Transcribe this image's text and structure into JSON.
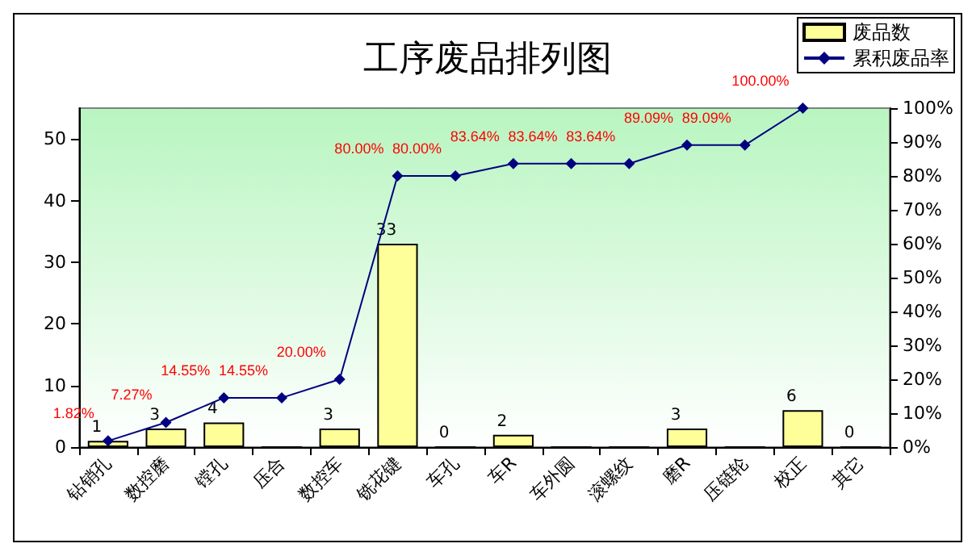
{
  "chart_data": {
    "type": "bar",
    "title": "工序废品排列图",
    "categories": [
      "钻销孔",
      "数控磨",
      "镗孔",
      "压合",
      "数控车",
      "铣花键",
      "车孔",
      "车R",
      "车外圆",
      "滚螺纹",
      "磨R",
      "压链轮",
      "校正",
      "其它"
    ],
    "series": [
      {
        "name": "废品数",
        "type": "bar",
        "color": "#ffff99",
        "values": [
          1,
          3,
          4,
          0,
          3,
          33,
          0,
          2,
          0,
          0,
          3,
          0,
          6,
          0
        ],
        "value_labels": [
          "1",
          "3",
          "4",
          null,
          "3",
          "33",
          "0",
          "2",
          null,
          null,
          "3",
          null,
          "6",
          "0"
        ]
      },
      {
        "name": "累积废品率",
        "type": "line",
        "axis": "y2",
        "color": "#000080",
        "values": [
          1.82,
          7.27,
          14.55,
          14.55,
          20,
          80,
          80,
          83.64,
          83.64,
          83.64,
          89.09,
          89.09,
          100,
          null
        ],
        "value_labels": [
          "1.82%",
          "7.27%",
          "14.55%",
          "14.55%",
          "20.00%",
          "80.00%",
          "80.00%",
          "83.64%",
          "83.64%",
          "83.64%",
          "89.09%",
          "89.09%",
          "100.00%",
          null
        ]
      }
    ],
    "ylim": [
      0,
      55
    ],
    "yticks": [
      0,
      10,
      20,
      30,
      40,
      50
    ],
    "y2lim": [
      0,
      100
    ],
    "y2ticks": [
      {
        "value": 0,
        "label": "0%"
      },
      {
        "value": 10,
        "label": "10%"
      },
      {
        "value": 20,
        "label": "20%"
      },
      {
        "value": 30,
        "label": "30%"
      },
      {
        "value": 40,
        "label": "40%"
      },
      {
        "value": 50,
        "label": "50%"
      },
      {
        "value": 60,
        "label": "60%"
      },
      {
        "value": 70,
        "label": "70%"
      },
      {
        "value": 80,
        "label": "80%"
      },
      {
        "value": 90,
        "label": "90%"
      },
      {
        "value": 100,
        "label": "100%"
      }
    ],
    "marker": "diamond",
    "grid": false,
    "legend": "top right"
  }
}
